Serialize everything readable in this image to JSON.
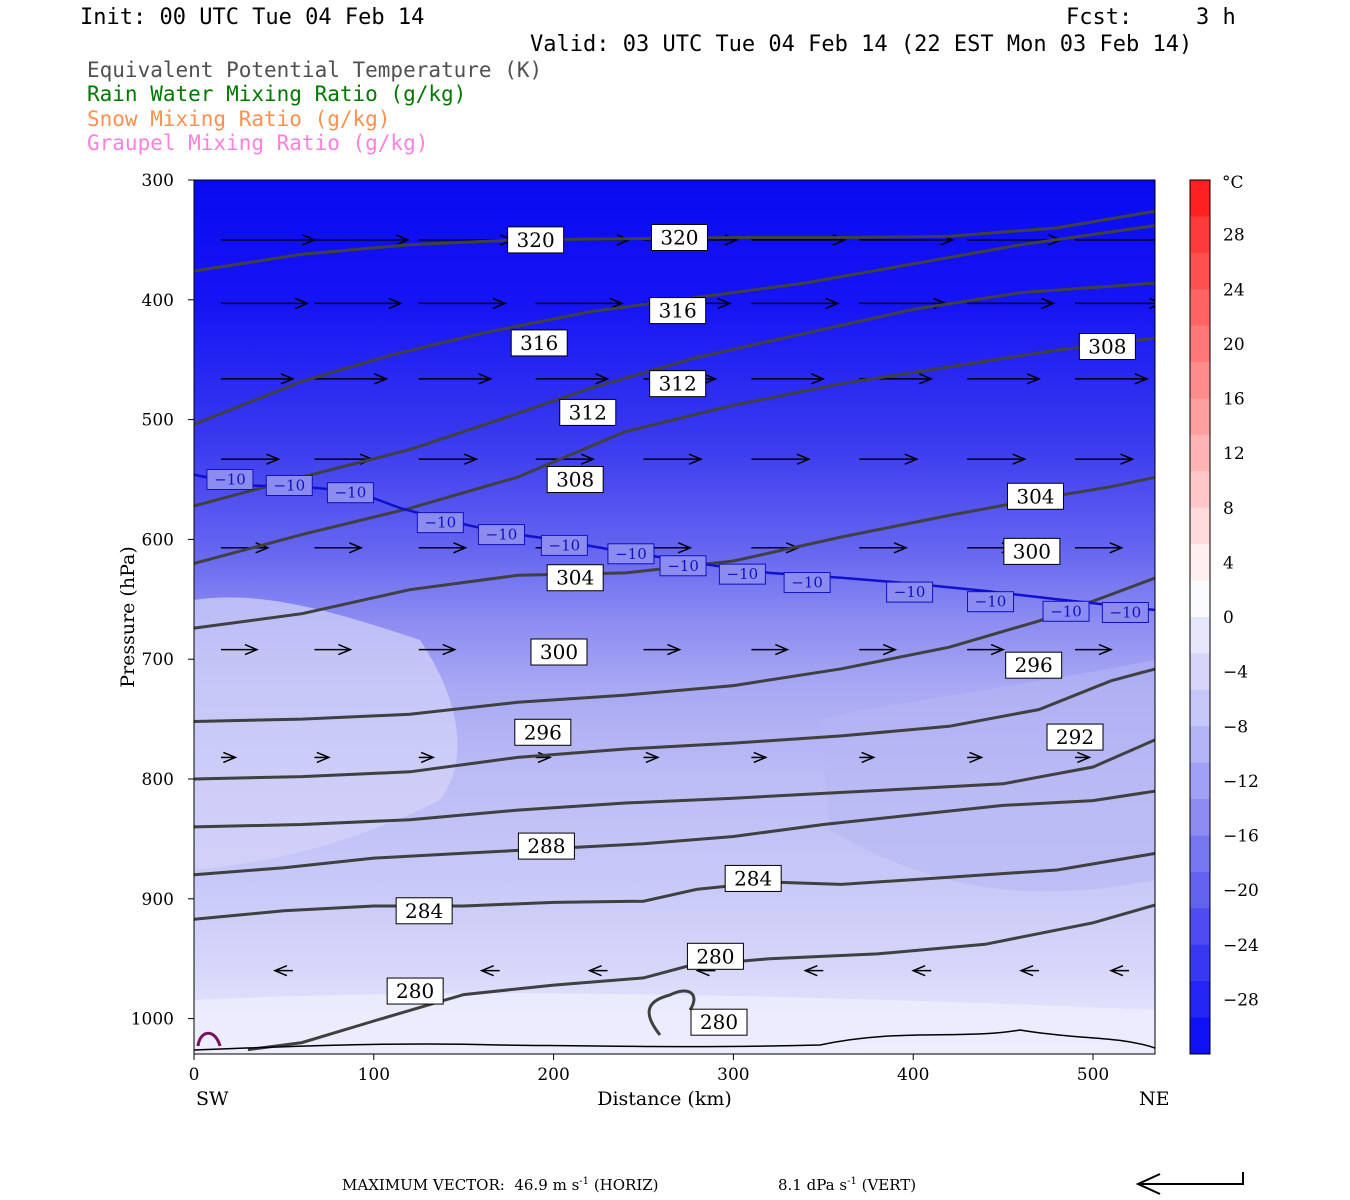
{
  "header": {
    "init": "Init: 00 UTC Tue 04 Feb 14",
    "fcst_label": "Fcst:",
    "fcst_value": "3 h",
    "valid": "Valid: 03 UTC Tue 04 Feb 14 (22 EST Mon 03 Feb 14)"
  },
  "fields": [
    {
      "label": "Equivalent Potential Temperature (K)",
      "color": "#505050"
    },
    {
      "label": "Rain Water Mixing Ratio (g/kg)",
      "color": "#007800"
    },
    {
      "label": "Snow Mixing Ratio (g/kg)",
      "color": "#ff9050"
    },
    {
      "label": "Graupel Mixing Ratio (g/kg)",
      "color": "#ff80e0"
    }
  ],
  "footer": {
    "max_vector_label": "MAXIMUM VECTOR:",
    "horiz_value": "46.9",
    "horiz_unit": "m s",
    "horiz_exp": "-1",
    "horiz_tag": "(HORIZ)",
    "vert_value": "8.1",
    "vert_unit": "dPa s",
    "vert_exp": "-1",
    "vert_tag": "(VERT)"
  },
  "chart_data": {
    "type": "contour-cross-section",
    "ylabel": "Pressure (hPa)",
    "xlabel": "Distance (km)",
    "x_left_label": "SW",
    "x_right_label": "NE",
    "xlim": [
      0,
      535
    ],
    "ylim": [
      1030,
      300
    ],
    "x_ticks": [
      0,
      100,
      200,
      300,
      400,
      500
    ],
    "y_ticks": [
      300,
      400,
      500,
      600,
      700,
      800,
      900,
      1000
    ],
    "colorbar": {
      "unit": "°C",
      "range": [
        -32,
        32
      ],
      "tick_labels": [
        "28",
        "24",
        "20",
        "16",
        "12",
        "8",
        "4",
        "0",
        "−4",
        "−8",
        "−12",
        "−16",
        "−20",
        "−24",
        "−28"
      ],
      "tick_values": [
        28,
        24,
        20,
        16,
        12,
        8,
        4,
        0,
        -4,
        -8,
        -12,
        -16,
        -20,
        -24,
        -28
      ]
    },
    "theta_e_contours": [
      {
        "value": 280,
        "points": [
          [
            30,
            1026
          ],
          [
            60,
            1020
          ],
          [
            100,
            1002
          ],
          [
            150,
            980
          ],
          [
            200,
            972
          ],
          [
            250,
            966
          ],
          [
            275,
            956
          ],
          [
            320,
            950
          ],
          [
            380,
            946
          ],
          [
            440,
            938
          ],
          [
            500,
            920
          ],
          [
            535,
            905
          ]
        ]
      },
      {
        "value": 284,
        "points": [
          [
            0,
            917
          ],
          [
            50,
            910
          ],
          [
            100,
            906
          ],
          [
            150,
            906
          ],
          [
            200,
            903
          ],
          [
            250,
            902
          ],
          [
            280,
            892
          ],
          [
            320,
            886
          ],
          [
            360,
            888
          ],
          [
            420,
            882
          ],
          [
            480,
            876
          ],
          [
            535,
            862
          ]
        ]
      },
      {
        "value": 288,
        "points": [
          [
            0,
            880
          ],
          [
            50,
            874
          ],
          [
            100,
            866
          ],
          [
            150,
            862
          ],
          [
            200,
            858
          ],
          [
            250,
            854
          ],
          [
            300,
            848
          ],
          [
            350,
            838
          ],
          [
            400,
            830
          ],
          [
            450,
            822
          ],
          [
            500,
            818
          ],
          [
            535,
            810
          ]
        ]
      },
      {
        "value": 292,
        "points": [
          [
            0,
            840
          ],
          [
            60,
            838
          ],
          [
            120,
            834
          ],
          [
            180,
            826
          ],
          [
            240,
            820
          ],
          [
            300,
            816
          ],
          [
            350,
            812
          ],
          [
            400,
            808
          ],
          [
            450,
            804
          ],
          [
            500,
            790
          ],
          [
            535,
            767
          ]
        ]
      },
      {
        "value": 296,
        "points": [
          [
            0,
            800
          ],
          [
            60,
            798
          ],
          [
            120,
            794
          ],
          [
            180,
            782
          ],
          [
            240,
            775
          ],
          [
            300,
            770
          ],
          [
            360,
            764
          ],
          [
            420,
            756
          ],
          [
            470,
            742
          ],
          [
            510,
            718
          ],
          [
            535,
            708
          ]
        ]
      },
      {
        "value": 300,
        "points": [
          [
            0,
            752
          ],
          [
            60,
            750
          ],
          [
            120,
            746
          ],
          [
            180,
            736
          ],
          [
            240,
            730
          ],
          [
            300,
            722
          ],
          [
            360,
            708
          ],
          [
            420,
            690
          ],
          [
            470,
            668
          ],
          [
            510,
            646
          ],
          [
            535,
            632
          ]
        ]
      },
      {
        "value": 304,
        "points": [
          [
            0,
            674
          ],
          [
            60,
            662
          ],
          [
            120,
            642
          ],
          [
            180,
            630
          ],
          [
            240,
            628
          ],
          [
            300,
            618
          ],
          [
            360,
            598
          ],
          [
            420,
            580
          ],
          [
            470,
            566
          ],
          [
            510,
            556
          ],
          [
            535,
            548
          ]
        ]
      },
      {
        "value": 308,
        "points": [
          [
            0,
            620
          ],
          [
            60,
            596
          ],
          [
            120,
            574
          ],
          [
            180,
            548
          ],
          [
            240,
            510
          ],
          [
            300,
            488
          ],
          [
            360,
            470
          ],
          [
            420,
            456
          ],
          [
            480,
            442
          ],
          [
            535,
            432
          ]
        ]
      },
      {
        "value": 312,
        "points": [
          [
            0,
            572
          ],
          [
            60,
            548
          ],
          [
            120,
            525
          ],
          [
            170,
            500
          ],
          [
            220,
            474
          ],
          [
            280,
            448
          ],
          [
            340,
            428
          ],
          [
            400,
            408
          ],
          [
            460,
            394
          ],
          [
            535,
            386
          ]
        ]
      },
      {
        "value": 316,
        "points": [
          [
            0,
            504
          ],
          [
            60,
            468
          ],
          [
            110,
            446
          ],
          [
            160,
            428
          ],
          [
            220,
            410
          ],
          [
            280,
            398
          ],
          [
            340,
            386
          ],
          [
            400,
            370
          ],
          [
            460,
            354
          ],
          [
            535,
            338
          ]
        ]
      },
      {
        "value": 320,
        "points": [
          [
            0,
            376
          ],
          [
            60,
            362
          ],
          [
            120,
            354
          ],
          [
            180,
            350
          ],
          [
            240,
            349
          ],
          [
            300,
            348
          ],
          [
            360,
            348
          ],
          [
            420,
            347
          ],
          [
            480,
            340
          ],
          [
            535,
            326
          ]
        ]
      }
    ],
    "contour_label_positions": [
      {
        "value": 280,
        "x": 123,
        "p": 977
      },
      {
        "value": 280,
        "x": 290,
        "p": 948
      },
      {
        "value": 280,
        "x": 292,
        "p": 1003
      },
      {
        "value": 284,
        "x": 128,
        "p": 910
      },
      {
        "value": 284,
        "x": 311,
        "p": 883
      },
      {
        "value": 288,
        "x": 196,
        "p": 856
      },
      {
        "value": 292,
        "x": 490,
        "p": 765
      },
      {
        "value": 296,
        "x": 194,
        "p": 761
      },
      {
        "value": 296,
        "x": 467,
        "p": 705
      },
      {
        "value": 300,
        "x": 203,
        "p": 694
      },
      {
        "value": 300,
        "x": 466,
        "p": 610
      },
      {
        "value": 304,
        "x": 212,
        "p": 632
      },
      {
        "value": 304,
        "x": 468,
        "p": 564
      },
      {
        "value": 308,
        "x": 212,
        "p": 550
      },
      {
        "value": 308,
        "x": 508,
        "p": 439
      },
      {
        "value": 312,
        "x": 219,
        "p": 494
      },
      {
        "value": 312,
        "x": 269,
        "p": 470
      },
      {
        "value": 316,
        "x": 192,
        "p": 436
      },
      {
        "value": 316,
        "x": 269,
        "p": 409
      },
      {
        "value": 320,
        "x": 190,
        "p": 350
      },
      {
        "value": 320,
        "x": 270,
        "p": 348
      }
    ],
    "temperature_contour": {
      "value": -10,
      "points": [
        [
          0,
          546
        ],
        [
          30,
          555
        ],
        [
          60,
          556
        ],
        [
          90,
          560
        ],
        [
          115,
          574
        ],
        [
          140,
          584
        ],
        [
          170,
          594
        ],
        [
          200,
          600
        ],
        [
          230,
          608
        ],
        [
          260,
          615
        ],
        [
          290,
          622
        ],
        [
          320,
          628
        ],
        [
          360,
          632
        ],
        [
          400,
          637
        ],
        [
          440,
          643
        ],
        [
          480,
          650
        ],
        [
          535,
          659
        ]
      ],
      "labels": [
        {
          "text": "−10",
          "x": 20,
          "p": 550
        },
        {
          "text": "−10",
          "x": 53,
          "p": 555
        },
        {
          "text": "−10",
          "x": 87,
          "p": 561
        },
        {
          "text": "−10",
          "x": 137,
          "p": 586
        },
        {
          "text": "−10",
          "x": 171,
          "p": 596
        },
        {
          "text": "−10",
          "x": 206,
          "p": 605
        },
        {
          "text": "−10",
          "x": 243,
          "p": 612
        },
        {
          "text": "−10",
          "x": 272,
          "p": 622
        },
        {
          "text": "−10",
          "x": 305,
          "p": 629
        },
        {
          "text": "−10",
          "x": 341,
          "p": 636
        },
        {
          "text": "−10",
          "x": 398,
          "p": 644
        },
        {
          "text": "−10",
          "x": 443,
          "p": 652
        },
        {
          "text": "−10",
          "x": 485,
          "p": 660
        },
        {
          "text": "−10",
          "x": 518,
          "p": 661
        }
      ]
    },
    "wind_rows": [
      {
        "p": 350,
        "len": 52,
        "xs": [
          15,
          67,
          125,
          190,
          250,
          310,
          370,
          430,
          490
        ]
      },
      {
        "p": 403,
        "len": 48,
        "xs": [
          15,
          67,
          125,
          190,
          250,
          310,
          370,
          430,
          490
        ]
      },
      {
        "p": 466,
        "len": 40,
        "xs": [
          15,
          67,
          125,
          190,
          250,
          310,
          370,
          430,
          490
        ]
      },
      {
        "p": 533,
        "len": 32,
        "xs": [
          15,
          67,
          125,
          190,
          250,
          310,
          370,
          430,
          490
        ]
      },
      {
        "p": 607,
        "len": 26,
        "xs": [
          15,
          67,
          125,
          190,
          250,
          310,
          370,
          430,
          490
        ]
      },
      {
        "p": 692,
        "len": 20,
        "xs": [
          15,
          67,
          125,
          190,
          250,
          310,
          370,
          430,
          490
        ]
      },
      {
        "p": 782,
        "len": 8,
        "xs": [
          15,
          67,
          125,
          190,
          250,
          310,
          370,
          430,
          490
        ]
      },
      {
        "p": 960,
        "len": -10,
        "xs": [
          55,
          170,
          230,
          290,
          350,
          410,
          470,
          520
        ]
      }
    ]
  }
}
